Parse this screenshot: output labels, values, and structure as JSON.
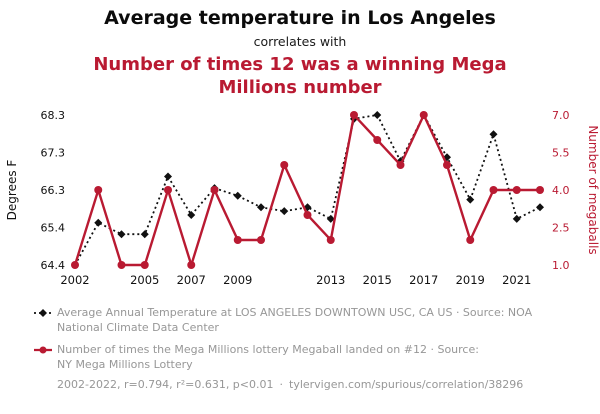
{
  "page": {
    "title": "Average temperature in Los Angeles",
    "connector": "correlates with",
    "subtitle": "Number of times 12 was a winning Mega Millions number"
  },
  "colors": {
    "accent_red": "#b91a32",
    "series_black": "#111111",
    "muted_gray": "#979797"
  },
  "chart_data": {
    "type": "line",
    "x": [
      2002,
      2003,
      2004,
      2005,
      2006,
      2007,
      2008,
      2009,
      2010,
      2011,
      2012,
      2013,
      2014,
      2015,
      2016,
      2017,
      2018,
      2019,
      2020,
      2021,
      2022
    ],
    "x_tick_labels": [
      "2002",
      "2005",
      "2007",
      "2009",
      "2013",
      "2015",
      "2017",
      "2019",
      "2021"
    ],
    "left_axis": {
      "label": "Degrees F",
      "min": 64.4,
      "max": 68.3,
      "ticks": [
        "64.4",
        "65.4",
        "66.3",
        "67.3",
        "68.3"
      ]
    },
    "right_axis": {
      "label": "Number of megaballs",
      "min": 1,
      "max": 7,
      "ticks": [
        "1.0",
        "2.5",
        "4.0",
        "5.5",
        "7.0"
      ]
    },
    "series": [
      {
        "name": "Average Annual Temperature at LOS ANGELES DOWNTOWN USC, CA US",
        "axis": "left",
        "color": "#111111",
        "style": "dotted-diamond",
        "values": [
          64.4,
          65.5,
          65.2,
          65.2,
          66.7,
          65.7,
          66.4,
          66.2,
          65.9,
          65.8,
          65.9,
          65.6,
          68.2,
          68.3,
          67.1,
          68.3,
          67.2,
          66.1,
          67.8,
          65.6,
          65.9
        ]
      },
      {
        "name": "Number of times the Mega Millions lottery Megaball landed on #12",
        "axis": "right",
        "color": "#b91a32",
        "style": "solid-circle",
        "values": [
          1,
          4,
          1,
          1,
          4,
          1,
          4,
          2,
          2,
          5,
          3,
          2,
          7,
          6,
          5,
          7,
          5,
          2,
          4,
          4,
          4
        ]
      }
    ],
    "grid": false,
    "legend_position": "bottom"
  },
  "legend": {
    "items": [
      {
        "series": "temperature",
        "line1": "Average Annual Temperature at LOS ANGELES DOWNTOWN USC, CA US · Source: NOA",
        "line2": "National Climate Data Center"
      },
      {
        "series": "megaball",
        "line1": "Number of times the Mega Millions lottery Megaball landed on #12 · Source:",
        "line2": "NY Mega Millions Lottery"
      }
    ]
  },
  "footer": {
    "stats": "2002-2022, r=0.794, r²=0.631, p<0.01",
    "separator": "·",
    "link": "tylervigen.com/spurious/correlation/38296"
  }
}
